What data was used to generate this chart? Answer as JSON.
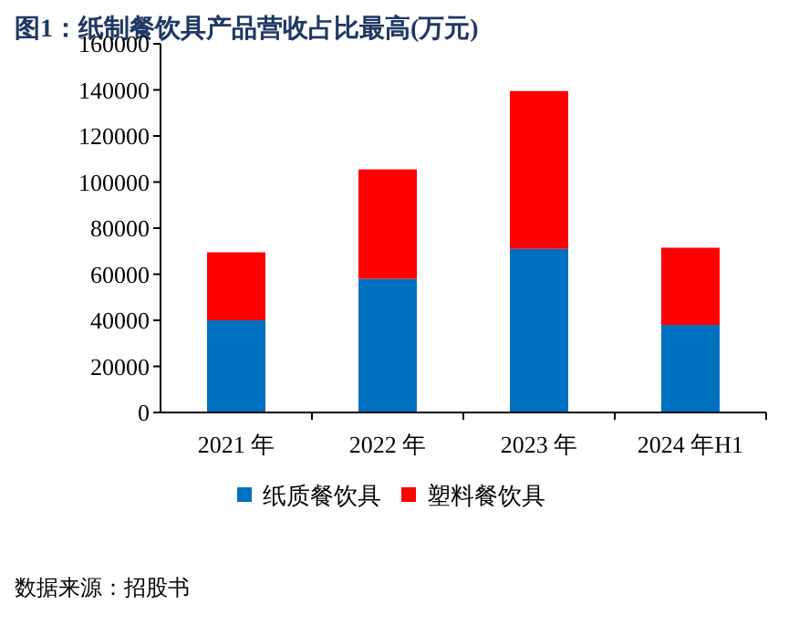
{
  "chart_data": {
    "type": "bar",
    "title": "图1：纸制餐饮具产品营收占比最高(万元)",
    "categories": [
      "2021 年",
      "2022 年",
      "2023 年",
      "2024 年H1"
    ],
    "stacked": true,
    "series": [
      {
        "name": "纸质餐饮具",
        "color": "#0070c0",
        "values": [
          40000,
          58000,
          71000,
          38000
        ]
      },
      {
        "name": "塑料餐饮具",
        "color": "#ff0000",
        "values": [
          29500,
          47500,
          68500,
          33500
        ]
      }
    ],
    "ylim": [
      0,
      160000
    ],
    "yticks": [
      0,
      20000,
      40000,
      60000,
      80000,
      100000,
      120000,
      140000,
      160000
    ],
    "legend": "bottom",
    "annotations": [
      "数据来源：招股书"
    ]
  }
}
